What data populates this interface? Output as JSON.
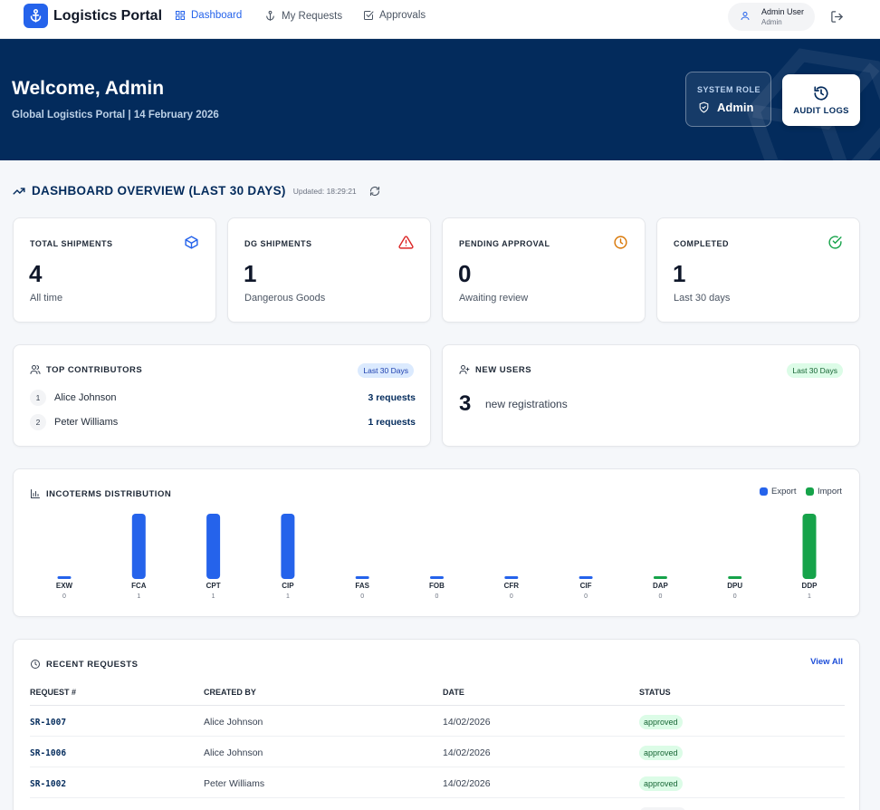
{
  "app": {
    "title": "Logistics Portal"
  },
  "nav": {
    "items": [
      {
        "label": "Dashboard",
        "icon": "dashboard-icon",
        "active": true
      },
      {
        "label": "My Requests",
        "icon": "anchor-icon"
      },
      {
        "label": "Approvals",
        "icon": "checkbox-icon"
      }
    ]
  },
  "user": {
    "name": "Admin User",
    "role": "Admin"
  },
  "hero": {
    "title": "Welcome, Admin",
    "subtitle": "Global Logistics Portal | 14 February 2026",
    "role_label": "SYSTEM ROLE",
    "role_value": "Admin",
    "audit_label": "AUDIT LOGS"
  },
  "overview": {
    "title": "DASHBOARD OVERVIEW (LAST 30 DAYS)",
    "updated": "Updated: 18:29:21"
  },
  "stats": [
    {
      "label": "TOTAL SHIPMENTS",
      "value": "4",
      "sub": "All time",
      "icon": "package-icon",
      "color": "#2563eb"
    },
    {
      "label": "DG SHIPMENTS",
      "value": "1",
      "sub": "Dangerous Goods",
      "icon": "warning-icon",
      "color": "#dc2626"
    },
    {
      "label": "PENDING APPROVAL",
      "value": "0",
      "sub": "Awaiting review",
      "icon": "clock-icon",
      "color": "#d97706"
    },
    {
      "label": "COMPLETED",
      "value": "1",
      "sub": "Last 30 days",
      "icon": "check-circle-icon",
      "color": "#16a34a"
    }
  ],
  "contributors": {
    "title": "TOP CONTRIBUTORS",
    "badge": "Last 30 Days",
    "items": [
      {
        "rank": "1",
        "name": "Alice Johnson",
        "count": "3 requests"
      },
      {
        "rank": "2",
        "name": "Peter Williams",
        "count": "1 requests"
      }
    ]
  },
  "new_users": {
    "title": "NEW USERS",
    "badge": "Last 30 Days",
    "count": "3",
    "label": "new registrations"
  },
  "chart_title": "INCOTERMS DISTRIBUTION",
  "chart_data": {
    "type": "bar",
    "categories": [
      "EXW",
      "FCA",
      "CPT",
      "CIP",
      "FAS",
      "FOB",
      "CFR",
      "CIF",
      "DAP",
      "DPU",
      "DDP"
    ],
    "values": [
      0,
      1,
      1,
      1,
      0,
      0,
      0,
      0,
      0,
      0,
      1
    ],
    "value_labels": [
      "0",
      "1",
      "1",
      "1",
      "0",
      "0",
      "0",
      "0",
      "0",
      "0",
      "1"
    ],
    "groups": [
      "Export",
      "Export",
      "Export",
      "Export",
      "Export",
      "Export",
      "Export",
      "Export",
      "Import",
      "Import",
      "Import"
    ],
    "legend": [
      {
        "name": "Export",
        "color": "#2563eb"
      },
      {
        "name": "Import",
        "color": "#16a34a"
      }
    ],
    "legend_position": "top-right",
    "ylim": [
      0,
      1
    ],
    "grid": false
  },
  "recent": {
    "title": "RECENT REQUESTS",
    "view_all": "View All",
    "columns": [
      "REQUEST #",
      "CREATED BY",
      "DATE",
      "STATUS"
    ],
    "rows": [
      {
        "id": "SR-1007",
        "by": "Alice Johnson",
        "date": "14/02/2026",
        "status": "approved"
      },
      {
        "id": "SR-1006",
        "by": "Alice Johnson",
        "date": "14/02/2026",
        "status": "approved"
      },
      {
        "id": "SR-1002",
        "by": "Peter Williams",
        "date": "14/02/2026",
        "status": "approved"
      }
    ]
  }
}
